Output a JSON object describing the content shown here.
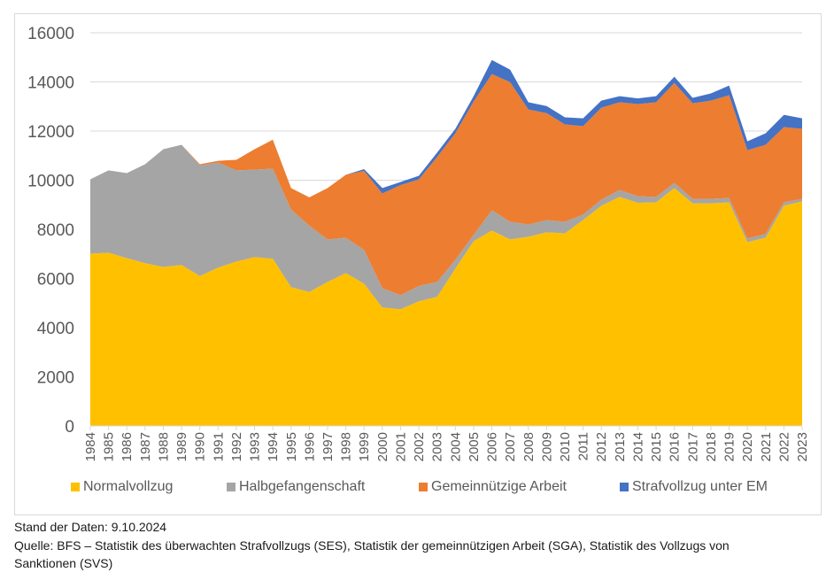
{
  "chart_data": {
    "type": "area",
    "stacked": true,
    "title": "",
    "xlabel": "",
    "ylabel": "",
    "ylim": [
      0,
      16000
    ],
    "yticks": [
      0,
      2000,
      4000,
      6000,
      8000,
      10000,
      12000,
      14000,
      16000
    ],
    "grid": true,
    "legend_position": "bottom",
    "categories": [
      "1984",
      "1985",
      "1986",
      "1987",
      "1988",
      "1989",
      "1990",
      "1991",
      "1992",
      "1993",
      "1994",
      "1995",
      "1996",
      "1997",
      "1998",
      "1999",
      "2000",
      "2001",
      "2002",
      "2003",
      "2004",
      "2005",
      "2006",
      "2007",
      "2008",
      "2009",
      "2010",
      "2011",
      "2012",
      "2013",
      "2014",
      "2015",
      "2016",
      "2017",
      "2018",
      "2019",
      "2020",
      "2021",
      "2022",
      "2023"
    ],
    "series": [
      {
        "name": "Normalvollzug",
        "color": "#FFC000",
        "values": [
          7010,
          7050,
          6830,
          6620,
          6470,
          6550,
          6100,
          6440,
          6690,
          6870,
          6800,
          5650,
          5450,
          5860,
          6220,
          5790,
          4820,
          4750,
          5070,
          5250,
          6400,
          7520,
          7950,
          7590,
          7700,
          7880,
          7840,
          8380,
          8960,
          9320,
          9080,
          9100,
          9680,
          9060,
          9060,
          9100,
          7480,
          7660,
          8960,
          9140
        ]
      },
      {
        "name": "Halbgefangenschaft",
        "color": "#A5A5A5",
        "values": [
          3025,
          3350,
          3460,
          4030,
          4790,
          4890,
          4510,
          4280,
          3710,
          3560,
          3670,
          3160,
          2700,
          1730,
          1440,
          1370,
          790,
          570,
          630,
          610,
          360,
          250,
          830,
          720,
          500,
          500,
          470,
          220,
          250,
          280,
          270,
          220,
          210,
          180,
          180,
          180,
          150,
          150,
          140,
          100
        ]
      },
      {
        "name": "Gemeinnützige Arbeit",
        "color": "#ED7D31",
        "values": [
          0,
          0,
          0,
          0,
          0,
          0,
          40,
          70,
          430,
          830,
          1180,
          870,
          1150,
          2090,
          2560,
          3220,
          3850,
          4480,
          4330,
          5080,
          5150,
          5430,
          5540,
          5680,
          4680,
          4350,
          3960,
          3600,
          3740,
          3570,
          3750,
          3850,
          4070,
          3890,
          4000,
          4180,
          3590,
          3630,
          3060,
          2850
        ]
      },
      {
        "name": "Strafvollzug unter EM",
        "color": "#4472C4",
        "values": [
          0,
          0,
          0,
          0,
          0,
          0,
          0,
          0,
          0,
          0,
          0,
          0,
          0,
          0,
          0,
          70,
          220,
          130,
          150,
          180,
          180,
          220,
          570,
          510,
          290,
          290,
          290,
          320,
          290,
          250,
          230,
          250,
          250,
          220,
          290,
          390,
          360,
          470,
          500,
          430
        ]
      }
    ]
  },
  "footer": {
    "date_line": "Stand der Daten: 9.10.2024",
    "source_line1": "Quelle: BFS – Statistik des überwachten Strafvollzugs (SES), Statistik der gemeinnützigen Arbeit (SGA), Statistik des Vollzugs von",
    "source_line2": "Sanktionen (SVS)"
  }
}
